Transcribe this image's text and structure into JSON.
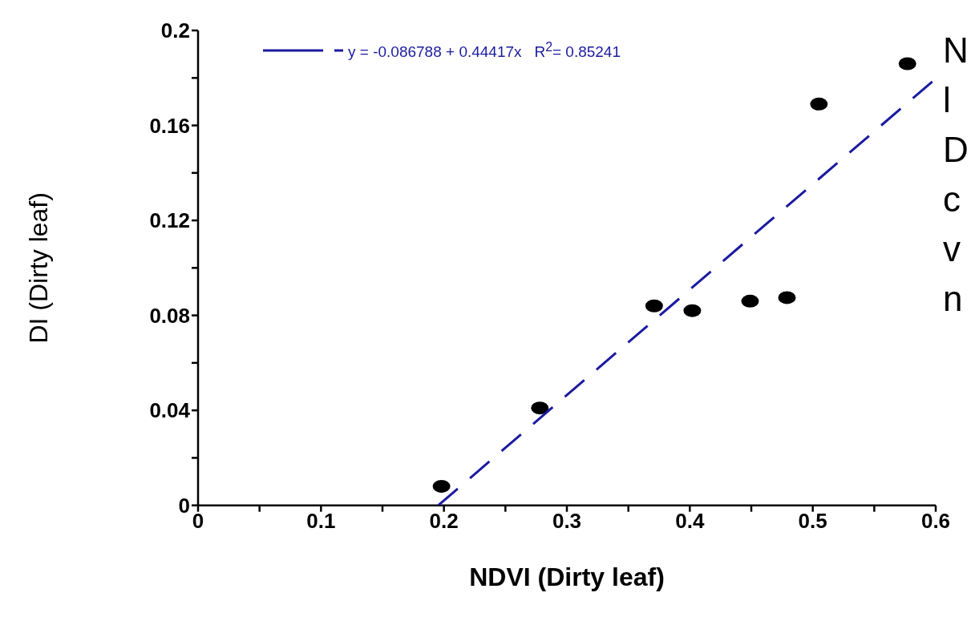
{
  "chart_data": {
    "type": "scatter",
    "xlabel": "NDVI (Dirty leaf)",
    "ylabel": "DI (Dirty leaf)",
    "xlim": [
      0,
      0.6
    ],
    "ylim": [
      0,
      0.2
    ],
    "xticks": [
      0,
      {
        "value": 0.05,
        "label": null
      },
      0.1,
      {
        "value": 0.15,
        "label": null
      },
      0.2,
      {
        "value": 0.25,
        "label": null
      },
      0.3,
      {
        "value": 0.35,
        "label": null
      },
      0.4,
      {
        "value": 0.45,
        "label": null
      },
      0.5,
      {
        "value": 0.55,
        "label": null
      },
      0.6
    ],
    "yticks": [
      0,
      {
        "value": 0.02,
        "label": null
      },
      0.04,
      {
        "value": 0.06,
        "label": null
      },
      0.08,
      {
        "value": 0.1,
        "label": null
      },
      0.12,
      {
        "value": 0.14,
        "label": null
      },
      0.16,
      {
        "value": 0.18,
        "label": null
      },
      0.2
    ],
    "marker": "circle",
    "legend": "top",
    "series": [
      {
        "color": "#000000",
        "x": [
          0.198,
          0.278,
          0.371,
          0.402,
          0.449,
          0.479,
          0.505,
          0.577
        ],
        "values": [
          0.008,
          0.041,
          0.084,
          0.082,
          0.086,
          0.0875,
          0.169,
          0.186
        ]
      },
      {
        "type": "line",
        "name": "y = -0.086788 + 0.44417x   R$^{2}$= 0.85241",
        "color": "#1a1aa0",
        "line_style": "dashed",
        "marker": "none",
        "x": [
          0.1954,
          0.6
        ],
        "values": [
          0,
          0.1797
        ]
      }
    ],
    "annotations": [
      "N",
      "l",
      "D",
      "c",
      "v",
      "n"
    ]
  }
}
